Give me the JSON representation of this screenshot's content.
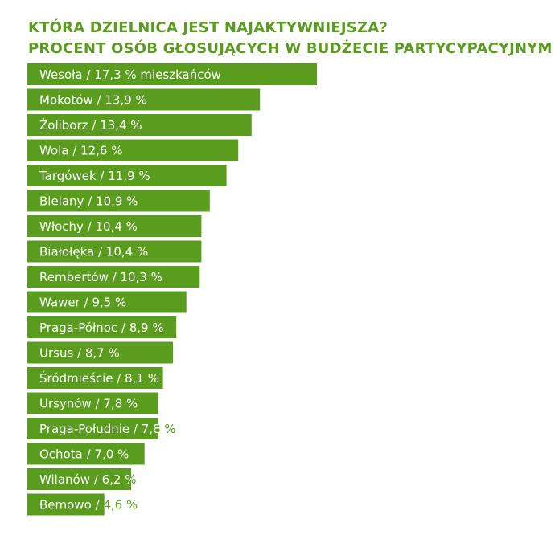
{
  "title": "KTÓRA DZIELNICA JEST NAJAKTYWNIEJSZA?",
  "subtitle": "PROCENT OSÓB GŁOSUJĄCYCH W BUDŻECIE PARTYCYPACYJNYM",
  "colors": {
    "bar": "#5a9c1e",
    "title": "#5a9c1e",
    "bar_label": "#ffffff"
  },
  "chart_data": {
    "type": "bar",
    "orientation": "horizontal",
    "title": "KTÓRA DZIELNICA JEST NAJAKTYWNIEJSZA?",
    "subtitle": "PROCENT OSÓB GŁOSUJĄCYCH W BUDŻECIE PARTYCYPACYJNYM",
    "xlabel": "",
    "ylabel": "",
    "xlim": [
      0,
      17.3
    ],
    "grid": false,
    "legend": "none",
    "categories": [
      "Wesoła",
      "Mokotów",
      "Żoliborz",
      "Wola",
      "Targówek",
      "Bielany",
      "Włochy",
      "Białołęka",
      "Rembertów",
      "Wawer",
      "Praga-Północ",
      "Ursus",
      "Śródmieście",
      "Ursynów",
      "Praga-Południe",
      "Ochota",
      "Wilanów",
      "Bemowo"
    ],
    "values": [
      17.3,
      13.9,
      13.4,
      12.6,
      11.9,
      10.9,
      10.4,
      10.4,
      10.3,
      9.5,
      8.9,
      8.7,
      8.1,
      7.8,
      7.8,
      7.0,
      6.2,
      4.6
    ],
    "labels": [
      "Wesoła / 17,3 % mieszkańców",
      "Mokotów / 13,9 %",
      "Żoliborz / 13,4 %",
      "Wola / 12,6 %",
      "Targówek / 11,9 %",
      "Bielany / 10,9 %",
      "Włochy / 10,4 %",
      "Białołęka / 10,4 %",
      "Rembertów / 10,3 %",
      "Wawer / 9,5 %",
      "Praga-Północ / 8,9 %",
      "Ursus / 8,7 %",
      "Śródmieście / 8,1 %",
      "Ursynów / 7,8 %",
      "Praga-Południe / 7,8 %",
      "Ochota / 7,0 %",
      "Wilanów / 6,2 %",
      "Bemowo / 4,6 %"
    ]
  }
}
